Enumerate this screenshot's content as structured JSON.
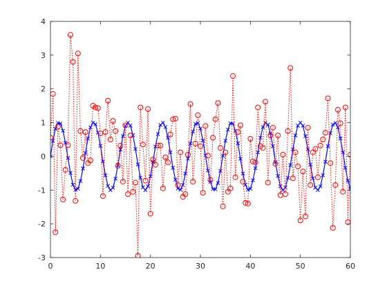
{
  "chart_data": {
    "type": "line",
    "title": "",
    "xlabel": "",
    "ylabel": "",
    "xlim": [
      0,
      60
    ],
    "ylim": [
      -3,
      4
    ],
    "xticks": [
      0,
      10,
      20,
      30,
      40,
      50,
      60
    ],
    "yticks": [
      -3,
      -2,
      -1,
      0,
      1,
      2,
      3,
      4
    ],
    "grid": false,
    "box": true,
    "series": [
      {
        "style": "solid line with x markers",
        "color": "#0000ff",
        "x_start": 0,
        "x_step": 0.5,
        "values": [
          0.0,
          0.46,
          0.82,
          0.99,
          0.97,
          0.76,
          0.4,
          -0.05,
          -0.49,
          -0.84,
          -0.99,
          -0.96,
          -0.73,
          -0.36,
          0.1,
          0.53,
          0.86,
          1.0,
          0.95,
          0.7,
          0.31,
          -0.15,
          -0.56,
          -0.88,
          -1.0,
          -0.93,
          -0.66,
          -0.26,
          0.2,
          0.6,
          0.9,
          1.0,
          0.91,
          0.63,
          0.22,
          -0.24,
          -0.63,
          -0.92,
          -1.0,
          -0.89,
          -0.59,
          -0.17,
          0.29,
          0.66,
          0.93,
          1.0,
          0.87,
          0.55,
          0.12,
          -0.34,
          -0.69,
          -0.95,
          -0.99,
          -0.85,
          -0.51,
          -0.07,
          0.38,
          0.73,
          0.96,
          0.99,
          0.82,
          0.47,
          0.02,
          -0.42,
          -0.76,
          -0.97,
          -0.98,
          -0.79,
          -0.43,
          0.02,
          0.46,
          0.79,
          0.98,
          0.97,
          0.75,
          0.39,
          -0.07,
          -0.51,
          -0.84,
          -0.99,
          -0.96,
          -0.71,
          -0.35,
          0.12,
          0.55,
          0.87,
          1.0,
          0.94,
          0.68,
          0.3,
          -0.17,
          -0.58,
          -0.89,
          -1.0,
          -0.93,
          -0.64,
          -0.26,
          0.21,
          0.62,
          0.91,
          1.0,
          0.91,
          0.6,
          0.21,
          -0.25,
          -0.65,
          -0.93,
          -1.0,
          -0.89,
          -0.56,
          -0.16,
          0.3,
          0.69,
          0.94,
          0.99,
          0.86,
          0.53,
          0.12,
          -0.34,
          -0.72,
          -0.96,
          -0.99,
          -1.0
        ]
      },
      {
        "style": "dotted line with circle markers",
        "color": "#ff0000",
        "x_start": 0,
        "x_step": 0.5,
        "values": [
          0.55,
          1.85,
          -2.25,
          0.88,
          0.33,
          -1.28,
          -0.4,
          0.33,
          3.6,
          2.8,
          -1.32,
          3.05,
          0.75,
          -0.05,
          0.72,
          -0.2,
          -0.12,
          1.5,
          1.45,
          1.43,
          0.68,
          -1.18,
          0.72,
          1.65,
          0.5,
          1.05,
          0.75,
          -0.28,
          0.32,
          -0.75,
          0.92,
          -1.12,
          0.62,
          -1.05,
          -0.78,
          -2.95,
          1.45,
          0.35,
          -0.72,
          1.4,
          -1.7,
          -0.1,
          -0.25,
          0.32,
          0.32,
          -0.95,
          -0.03,
          -0.18,
          0.65,
          1.1,
          1.12,
          -0.85,
          0.12,
          -1.2,
          -1.12,
          0.05,
          1.55,
          -0.75,
          0.38,
          1.22,
          0.3,
          -1.08,
          0.9,
          0.02,
          -0.7,
          0.55,
          1.1,
          1.58,
          0.25,
          -1.48,
          0.12,
          -1.05,
          -0.95,
          2.38,
          -0.62,
          0.72,
          0.92,
          -0.75,
          -1.38,
          -1.4,
          0.52,
          -0.15,
          -0.18,
          1.45,
          0.3,
          0.25,
          1.62,
          -0.78,
          0.62,
          0.85,
          -0.22,
          0.62,
          -1.15,
          0.05,
          -1.12,
          0.75,
          2.62,
          -0.65,
          0.12,
          -0.3,
          -1.9,
          -0.45,
          -1.78,
          0.85,
          -0.85,
          0.12,
          0.22,
          -0.62,
          0.32,
          0.5,
          0.7,
          1.72,
          -0.2,
          -2.12,
          -0.85,
          1.38,
          0.98,
          -1.05,
          1.45,
          -1.95,
          0.05,
          -1.2,
          2.95
        ]
      }
    ]
  }
}
